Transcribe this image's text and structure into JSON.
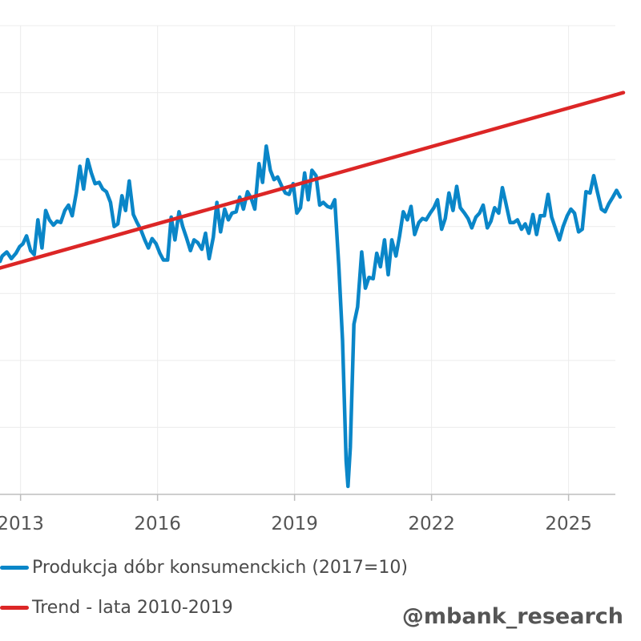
{
  "chart_data": {
    "type": "line",
    "xlim": [
      2012.55,
      2026.2
    ],
    "ylim": [
      0,
      35
    ],
    "grid": true,
    "x_ticks": [
      {
        "value": 2013,
        "label": "2013"
      },
      {
        "value": 2016,
        "label": "2016"
      },
      {
        "value": 2019,
        "label": "2019"
      },
      {
        "value": 2022,
        "label": "2022"
      },
      {
        "value": 2025,
        "label": "2025"
      }
    ],
    "y_gridlines": [
      0,
      5,
      10,
      15,
      20,
      25,
      30,
      35
    ],
    "series": [
      {
        "name": "Produkcja dóbr konsumenckich (2017=10)",
        "color": "#0a86c8",
        "points": [
          [
            2012.55,
            17.4
          ],
          [
            2012.6,
            17.8
          ],
          [
            2012.7,
            18.1
          ],
          [
            2012.8,
            17.6
          ],
          [
            2012.9,
            18.0
          ],
          [
            2012.98,
            18.5
          ],
          [
            2013.05,
            18.7
          ],
          [
            2013.13,
            19.3
          ],
          [
            2013.22,
            18.2
          ],
          [
            2013.3,
            17.9
          ],
          [
            2013.38,
            20.5
          ],
          [
            2013.47,
            18.4
          ],
          [
            2013.55,
            21.2
          ],
          [
            2013.63,
            20.5
          ],
          [
            2013.72,
            20.1
          ],
          [
            2013.8,
            20.4
          ],
          [
            2013.88,
            20.3
          ],
          [
            2013.97,
            21.2
          ],
          [
            2014.05,
            21.6
          ],
          [
            2014.13,
            20.8
          ],
          [
            2014.22,
            22.5
          ],
          [
            2014.3,
            24.5
          ],
          [
            2014.38,
            22.8
          ],
          [
            2014.47,
            25.0
          ],
          [
            2014.55,
            24.0
          ],
          [
            2014.63,
            23.2
          ],
          [
            2014.72,
            23.3
          ],
          [
            2014.8,
            22.8
          ],
          [
            2014.88,
            22.6
          ],
          [
            2014.97,
            21.8
          ],
          [
            2015.05,
            20.0
          ],
          [
            2015.13,
            20.2
          ],
          [
            2015.22,
            22.3
          ],
          [
            2015.3,
            21.2
          ],
          [
            2015.38,
            23.4
          ],
          [
            2015.47,
            20.9
          ],
          [
            2015.55,
            20.3
          ],
          [
            2015.63,
            19.8
          ],
          [
            2015.72,
            19.0
          ],
          [
            2015.8,
            18.4
          ],
          [
            2015.88,
            19.1
          ],
          [
            2015.97,
            18.7
          ],
          [
            2016.05,
            18.0
          ],
          [
            2016.13,
            17.5
          ],
          [
            2016.22,
            17.5
          ],
          [
            2016.3,
            20.7
          ],
          [
            2016.38,
            19.0
          ],
          [
            2016.47,
            21.1
          ],
          [
            2016.55,
            20.0
          ],
          [
            2016.63,
            19.2
          ],
          [
            2016.72,
            18.2
          ],
          [
            2016.8,
            19.0
          ],
          [
            2016.88,
            18.8
          ],
          [
            2016.97,
            18.3
          ],
          [
            2017.05,
            19.5
          ],
          [
            2017.13,
            17.6
          ],
          [
            2017.22,
            19.2
          ],
          [
            2017.3,
            21.8
          ],
          [
            2017.38,
            19.6
          ],
          [
            2017.47,
            21.3
          ],
          [
            2017.55,
            20.5
          ],
          [
            2017.63,
            21.0
          ],
          [
            2017.72,
            21.1
          ],
          [
            2017.8,
            22.2
          ],
          [
            2017.88,
            21.3
          ],
          [
            2017.97,
            22.6
          ],
          [
            2018.05,
            22.1
          ],
          [
            2018.13,
            21.3
          ],
          [
            2018.22,
            24.7
          ],
          [
            2018.3,
            23.3
          ],
          [
            2018.38,
            26.0
          ],
          [
            2018.47,
            24.2
          ],
          [
            2018.55,
            23.5
          ],
          [
            2018.63,
            23.7
          ],
          [
            2018.72,
            23.0
          ],
          [
            2018.8,
            22.5
          ],
          [
            2018.88,
            22.4
          ],
          [
            2018.97,
            23.2
          ],
          [
            2019.05,
            21.0
          ],
          [
            2019.13,
            21.4
          ],
          [
            2019.22,
            24.0
          ],
          [
            2019.3,
            22.0
          ],
          [
            2019.38,
            24.2
          ],
          [
            2019.47,
            23.8
          ],
          [
            2019.55,
            21.6
          ],
          [
            2019.63,
            21.8
          ],
          [
            2019.72,
            21.5
          ],
          [
            2019.8,
            21.4
          ],
          [
            2019.88,
            22.0
          ],
          [
            2019.97,
            17.0
          ],
          [
            2020.05,
            11.5
          ],
          [
            2020.13,
            2.5
          ],
          [
            2020.17,
            0.6
          ],
          [
            2020.22,
            3.5
          ],
          [
            2020.3,
            12.7
          ],
          [
            2020.38,
            14.0
          ],
          [
            2020.47,
            18.1
          ],
          [
            2020.55,
            15.4
          ],
          [
            2020.63,
            16.2
          ],
          [
            2020.72,
            16.1
          ],
          [
            2020.8,
            18.0
          ],
          [
            2020.88,
            17.0
          ],
          [
            2020.97,
            19.0
          ],
          [
            2021.05,
            16.4
          ],
          [
            2021.13,
            19.0
          ],
          [
            2021.22,
            17.8
          ],
          [
            2021.3,
            19.3
          ],
          [
            2021.38,
            21.1
          ],
          [
            2021.47,
            20.5
          ],
          [
            2021.55,
            21.5
          ],
          [
            2021.63,
            19.4
          ],
          [
            2021.72,
            20.3
          ],
          [
            2021.8,
            20.6
          ],
          [
            2021.88,
            20.5
          ],
          [
            2021.97,
            21.0
          ],
          [
            2022.05,
            21.4
          ],
          [
            2022.13,
            22.0
          ],
          [
            2022.22,
            19.8
          ],
          [
            2022.3,
            20.6
          ],
          [
            2022.38,
            22.5
          ],
          [
            2022.47,
            21.2
          ],
          [
            2022.55,
            23.0
          ],
          [
            2022.63,
            21.4
          ],
          [
            2022.72,
            21.0
          ],
          [
            2022.8,
            20.6
          ],
          [
            2022.88,
            19.9
          ],
          [
            2022.97,
            20.7
          ],
          [
            2023.05,
            21.0
          ],
          [
            2023.13,
            21.6
          ],
          [
            2023.22,
            19.9
          ],
          [
            2023.3,
            20.4
          ],
          [
            2023.38,
            21.4
          ],
          [
            2023.47,
            21.0
          ],
          [
            2023.55,
            22.9
          ],
          [
            2023.63,
            21.7
          ],
          [
            2023.72,
            20.3
          ],
          [
            2023.8,
            20.3
          ],
          [
            2023.88,
            20.5
          ],
          [
            2023.97,
            19.8
          ],
          [
            2024.05,
            20.2
          ],
          [
            2024.13,
            19.5
          ],
          [
            2024.22,
            20.9
          ],
          [
            2024.3,
            19.4
          ],
          [
            2024.38,
            20.8
          ],
          [
            2024.47,
            20.8
          ],
          [
            2024.55,
            22.4
          ],
          [
            2024.63,
            20.7
          ],
          [
            2024.72,
            19.8
          ],
          [
            2024.8,
            19.0
          ],
          [
            2024.88,
            20.0
          ],
          [
            2024.97,
            20.8
          ],
          [
            2025.05,
            21.3
          ],
          [
            2025.13,
            21.0
          ],
          [
            2025.22,
            19.6
          ],
          [
            2025.3,
            19.8
          ],
          [
            2025.38,
            22.6
          ],
          [
            2025.47,
            22.5
          ],
          [
            2025.55,
            23.8
          ],
          [
            2025.63,
            22.6
          ],
          [
            2025.72,
            21.3
          ],
          [
            2025.8,
            21.1
          ],
          [
            2025.88,
            21.7
          ],
          [
            2025.97,
            22.2
          ],
          [
            2026.05,
            22.7
          ],
          [
            2026.13,
            22.2
          ]
        ]
      },
      {
        "name": "Trend - lata 2010-2019",
        "color": "#dc2626",
        "points": [
          [
            2012.55,
            16.9
          ],
          [
            2026.2,
            30.0
          ]
        ]
      }
    ]
  },
  "watermark": "@mbank_research"
}
